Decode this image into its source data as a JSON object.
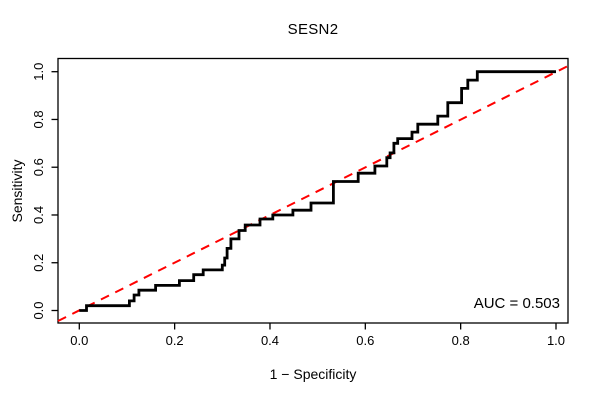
{
  "chart_data": {
    "type": "line",
    "subtype": "roc-step-curve",
    "title": "SESN2",
    "xlabel": "1 − Specificity",
    "ylabel": "Sensitivity",
    "xlim": [
      0,
      1
    ],
    "ylim": [
      0,
      1
    ],
    "grid": false,
    "legend": "none",
    "x_ticks": [
      "0.0",
      "0.2",
      "0.4",
      "0.6",
      "0.8",
      "1.0"
    ],
    "y_ticks": [
      "0.0",
      "0.2",
      "0.4",
      "0.6",
      "0.8",
      "1.0"
    ],
    "colors": {
      "roc_curve": "#000000",
      "diagonal": "#ff0000",
      "axis": "#000000",
      "background": "#ffffff"
    },
    "annotations": [
      {
        "text": "AUC = 0.503",
        "x": 0.99,
        "y": 0.03,
        "align": "right"
      }
    ],
    "series": [
      {
        "name": "ROC curve",
        "style": "solid-step",
        "color": "#000000",
        "points": [
          [
            0,
            0
          ],
          [
            0.015,
            0
          ],
          [
            0.015,
            0.02
          ],
          [
            0.105,
            0.02
          ],
          [
            0.105,
            0.04
          ],
          [
            0.115,
            0.04
          ],
          [
            0.115,
            0.065
          ],
          [
            0.125,
            0.065
          ],
          [
            0.125,
            0.085
          ],
          [
            0.16,
            0.085
          ],
          [
            0.16,
            0.105
          ],
          [
            0.21,
            0.105
          ],
          [
            0.21,
            0.125
          ],
          [
            0.24,
            0.125
          ],
          [
            0.24,
            0.15
          ],
          [
            0.26,
            0.15
          ],
          [
            0.26,
            0.17
          ],
          [
            0.3,
            0.17
          ],
          [
            0.3,
            0.19
          ],
          [
            0.305,
            0.19
          ],
          [
            0.305,
            0.22
          ],
          [
            0.31,
            0.22
          ],
          [
            0.31,
            0.26
          ],
          [
            0.318,
            0.26
          ],
          [
            0.318,
            0.3
          ],
          [
            0.335,
            0.3
          ],
          [
            0.335,
            0.335
          ],
          [
            0.348,
            0.335
          ],
          [
            0.348,
            0.358
          ],
          [
            0.379,
            0.358
          ],
          [
            0.379,
            0.383
          ],
          [
            0.406,
            0.383
          ],
          [
            0.406,
            0.4
          ],
          [
            0.448,
            0.4
          ],
          [
            0.448,
            0.42
          ],
          [
            0.486,
            0.42
          ],
          [
            0.486,
            0.45
          ],
          [
            0.533,
            0.45
          ],
          [
            0.533,
            0.54
          ],
          [
            0.585,
            0.54
          ],
          [
            0.585,
            0.575
          ],
          [
            0.62,
            0.575
          ],
          [
            0.62,
            0.605
          ],
          [
            0.645,
            0.605
          ],
          [
            0.645,
            0.64
          ],
          [
            0.652,
            0.64
          ],
          [
            0.652,
            0.66
          ],
          [
            0.66,
            0.66
          ],
          [
            0.66,
            0.7
          ],
          [
            0.668,
            0.7
          ],
          [
            0.668,
            0.72
          ],
          [
            0.698,
            0.72
          ],
          [
            0.698,
            0.747
          ],
          [
            0.71,
            0.747
          ],
          [
            0.71,
            0.78
          ],
          [
            0.752,
            0.78
          ],
          [
            0.752,
            0.814
          ],
          [
            0.773,
            0.814
          ],
          [
            0.773,
            0.87
          ],
          [
            0.802,
            0.87
          ],
          [
            0.802,
            0.93
          ],
          [
            0.815,
            0.93
          ],
          [
            0.815,
            0.965
          ],
          [
            0.835,
            0.965
          ],
          [
            0.835,
            1
          ],
          [
            1,
            1
          ]
        ]
      },
      {
        "name": "Chance diagonal",
        "style": "dashed",
        "color": "#ff0000",
        "points": [
          [
            0,
            0
          ],
          [
            1,
            1
          ]
        ]
      }
    ]
  }
}
